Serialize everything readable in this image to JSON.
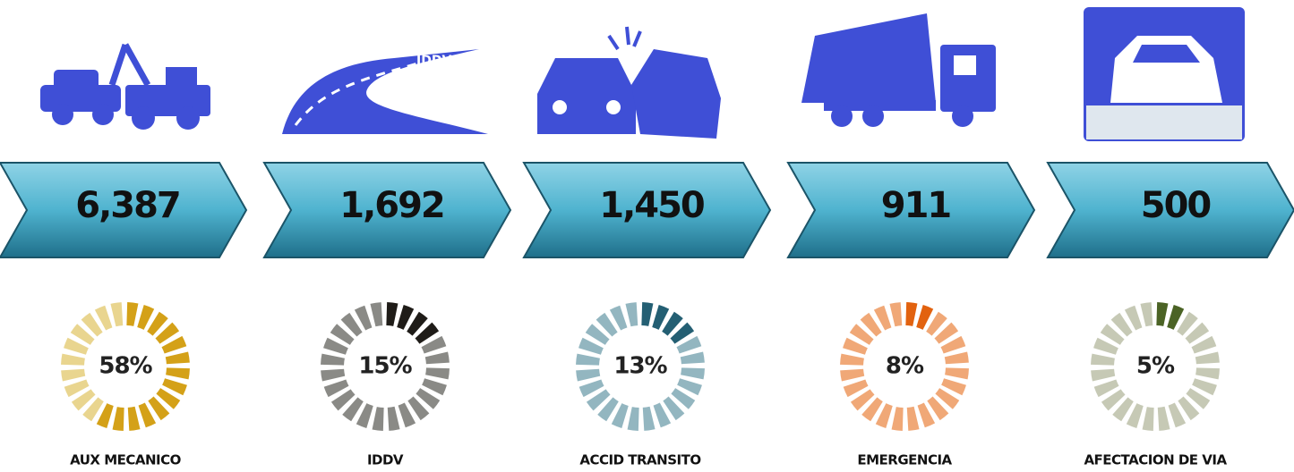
{
  "items": [
    {
      "count": "6,387",
      "percent": 58,
      "percent_label": "58%",
      "label": "AUX MECANICO",
      "light": "#e9d58f",
      "dark": "#d4a118"
    },
    {
      "count": "1,692",
      "percent": 15,
      "percent_label": "15%",
      "label": "IDDV",
      "light": "#8a8a86",
      "dark": "#1f1c18"
    },
    {
      "count": "1,450",
      "percent": 13,
      "percent_label": "13%",
      "label": "ACCID TRANSITO",
      "light": "#93b6c0",
      "dark": "#245f73"
    },
    {
      "count": "911",
      "percent": 8,
      "percent_label": "8%",
      "label": "EMERGENCIA",
      "light": "#f0a877",
      "dark": "#e2620f"
    },
    {
      "count": "500",
      "percent": 5,
      "percent_label": "5%",
      "label": "AFECTACION DE VIA",
      "light": "#c6c9b5",
      "dark": "#4b6325"
    }
  ]
}
